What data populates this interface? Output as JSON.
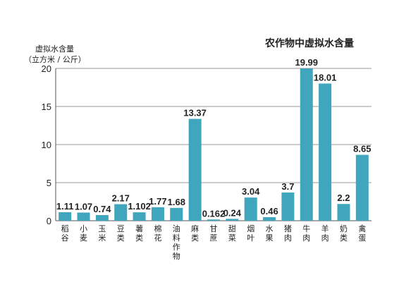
{
  "chart_data": {
    "type": "bar",
    "title": "农作物中虚拟水含量",
    "ylabel_line1": "虚拟水含量",
    "ylabel_line2": "（立方米 / 公斤）",
    "ylim": [
      0,
      20
    ],
    "yticks": [
      0,
      5,
      10,
      15,
      20
    ],
    "grid": true,
    "categories": [
      "稻谷",
      "小麦",
      "玉米",
      "豆类",
      "薯类",
      "棉花",
      "油料作物",
      "麻类",
      "甘蔗",
      "甜菜",
      "烟叶",
      "水果",
      "猪肉",
      "牛肉",
      "羊肉",
      "奶类",
      "禽蛋"
    ],
    "values": [
      1.11,
      1.07,
      0.74,
      2.17,
      1.102,
      1.77,
      1.68,
      13.37,
      0.162,
      0.24,
      3.04,
      0.46,
      3.7,
      19.99,
      18.01,
      2.2,
      8.65
    ],
    "value_labels": [
      "1.11",
      "1.07",
      "0.74",
      "2.17",
      "1.102",
      "1.77",
      "1.68",
      "13.37",
      "0.162",
      "0.24",
      "3.04",
      "0.46",
      "3.7",
      "19.99",
      "18.01",
      "2.2",
      "8.65"
    ]
  },
  "colors": {
    "bar": "#3fa6bd",
    "grid": "#9a9a9a",
    "axis": "#555555",
    "text": "#222222"
  }
}
